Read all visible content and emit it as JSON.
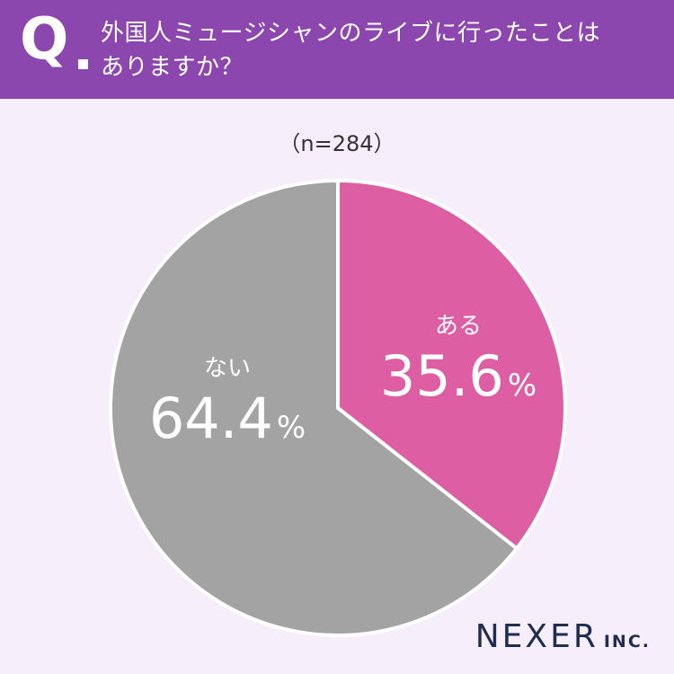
{
  "header": {
    "q_mark": "Q",
    "question_line1": "外国人ミュージシャンのライブに行ったことは",
    "question_line2": "ありますか？"
  },
  "sample_size": "（n=284）",
  "colors": {
    "header_bg": "#8b47ad",
    "page_bg": "#f6eefa",
    "yes": "#de5ea3",
    "no": "#a3a3a3"
  },
  "chart_data": {
    "type": "pie",
    "categories": [
      "ある",
      "ない"
    ],
    "values": [
      35.6,
      64.4
    ],
    "value_labels": [
      "35.6",
      "64.4"
    ],
    "unit": "%",
    "colors": [
      "#de5ea3",
      "#a3a3a3"
    ],
    "start": "12 o'clock, clockwise"
  },
  "logo": {
    "main": "NEXER",
    "sub": "INC."
  }
}
